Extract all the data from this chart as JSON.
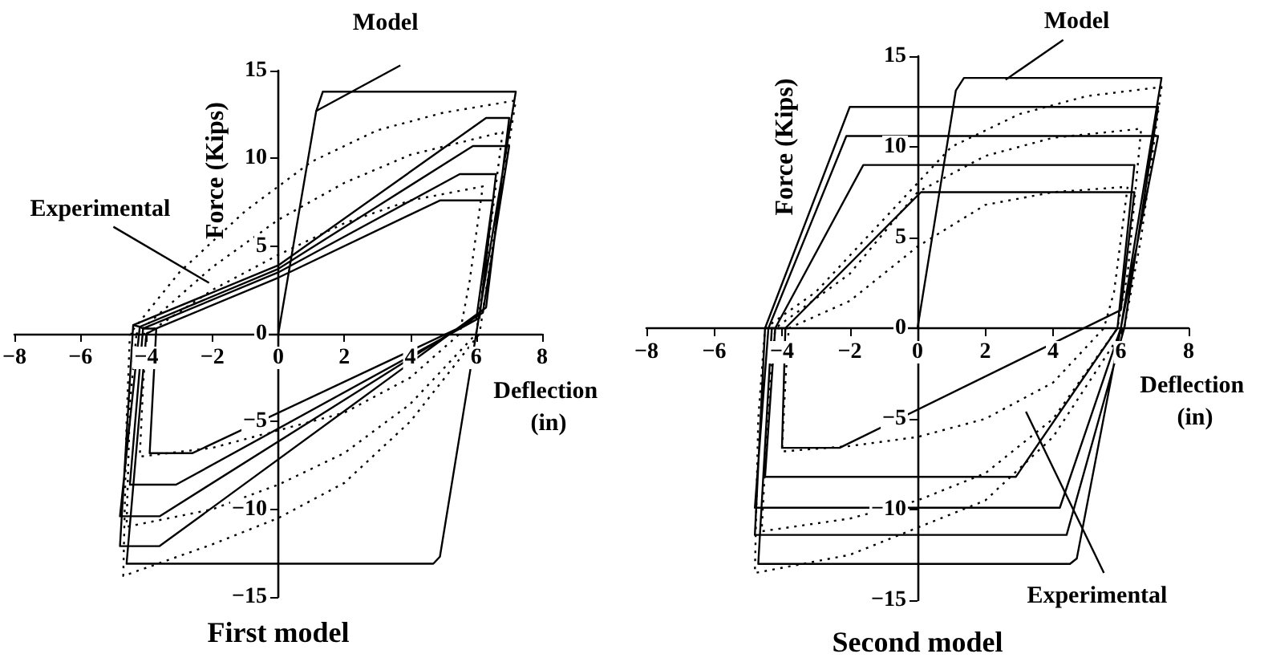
{
  "chart_data": [
    {
      "type": "line",
      "title": "First model",
      "xlabel": "Deflection (in)",
      "ylabel": "Force (Kips)",
      "xlim": [
        -8,
        8
      ],
      "xticks": [
        -8,
        -6,
        -4,
        -2,
        0,
        2,
        4,
        6,
        8
      ],
      "ylim": [
        -15,
        15
      ],
      "yticks": [
        -15,
        -10,
        -5,
        0,
        5,
        10,
        15
      ],
      "grid": false,
      "legend": false,
      "marker": "none",
      "series": [
        {
          "name": "Model",
          "color": "#000000",
          "line_style": "solid",
          "x": [
            0,
            1.15,
            1.35,
            7.2,
            6.0,
            4.9,
            4.7,
            -4.6,
            -4.0,
            -3.7,
            0,
            4.9,
            6.5,
            6.0,
            -2.6,
            -3.9,
            -3.7,
            -4.1,
            0,
            5.5,
            6.6,
            6.1,
            -3.1,
            -4.5,
            -4.1,
            -4.2,
            0,
            5.9,
            7.0,
            6.2,
            -3.6,
            -4.8,
            -4.2,
            -4.4,
            0,
            6.3,
            7.0,
            6.3,
            -3.6,
            -4.8,
            -4.4
          ],
          "values": [
            0,
            12.7,
            13.8,
            13.8,
            0,
            -12.7,
            -13.1,
            -13.1,
            0,
            0.3,
            3.2,
            7.6,
            7.6,
            0.8,
            -6.8,
            -6.8,
            0.3,
            0.3,
            3.5,
            9.1,
            9.1,
            0.9,
            -8.6,
            -8.6,
            0.3,
            0.4,
            3.7,
            10.7,
            10.7,
            1.2,
            -10.4,
            -10.4,
            0.4,
            0.5,
            3.9,
            12.3,
            12.3,
            1.5,
            -12.1,
            -12.1,
            0.5
          ]
        },
        {
          "name": "Experimental",
          "color": "#000000",
          "line_style": "dotted",
          "x": [
            -4.0,
            -2,
            0,
            2,
            4,
            6.2,
            5.8,
            5.5,
            4,
            2,
            0,
            -2,
            -4.2,
            -4.1,
            -4.0,
            -4.3,
            -2,
            0,
            2,
            4,
            6.8,
            6.3,
            6.0,
            4,
            2,
            0,
            -2,
            -4.6,
            -4.5,
            -4.3,
            -4.5,
            -3,
            -1,
            1,
            3,
            5,
            7.2,
            6.5,
            6.1,
            4,
            2,
            0,
            -2,
            -4.7,
            -4.6,
            -4.5
          ],
          "values": [
            0,
            2.5,
            4.5,
            6.3,
            7.6,
            8.4,
            3,
            0,
            -2.5,
            -4.5,
            -5.5,
            -6.5,
            -7.0,
            -3,
            0,
            0,
            3.8,
            6.5,
            8.6,
            10.2,
            11.5,
            4,
            0,
            -4,
            -6.8,
            -8.6,
            -10,
            -11,
            -4,
            0,
            0,
            3.5,
            7,
            9.8,
            11.6,
            12.6,
            13.3,
            5,
            0,
            -5,
            -8.5,
            -10.5,
            -12,
            -13.8,
            -5,
            0
          ]
        }
      ]
    },
    {
      "type": "line",
      "title": "Second model",
      "xlabel": "Deflection (in)",
      "ylabel": "Force (Kips)",
      "xlim": [
        -8,
        8
      ],
      "xticks": [
        -8,
        -6,
        -4,
        -2,
        0,
        2,
        4,
        6,
        8
      ],
      "ylim": [
        -15,
        15
      ],
      "yticks": [
        -15,
        -10,
        -5,
        0,
        5,
        10,
        15
      ],
      "grid": false,
      "legend": false,
      "marker": "none",
      "series": [
        {
          "name": "Model",
          "color": "#000000",
          "line_style": "solid",
          "x": [
            0,
            1.13,
            1.37,
            7.2,
            6.0,
            4.7,
            4.5,
            -4.7,
            -4.3,
            -3.9,
            0.1,
            6.4,
            6.0,
            -2.3,
            -4.0,
            -3.9,
            -4.2,
            -1.6,
            6.4,
            5.9,
            2.9,
            -4.5,
            -4.2,
            -4.4,
            -2.1,
            7.1,
            6.0,
            4.2,
            -4.8,
            -4.4,
            -4.5,
            -2.0,
            7.1,
            6.1,
            4.4,
            -4.8,
            -4.5
          ],
          "values": [
            0,
            13.1,
            13.8,
            13.8,
            0,
            -12.7,
            -13.0,
            -13.0,
            0,
            0,
            7.5,
            7.5,
            1.0,
            -6.6,
            -6.6,
            0,
            0,
            9.0,
            9.0,
            0,
            -8.2,
            -8.2,
            0,
            0,
            10.6,
            10.6,
            0,
            -9.9,
            -9.9,
            0,
            0,
            12.2,
            12.2,
            0,
            -11.4,
            -11.4,
            0
          ]
        },
        {
          "name": "Experimental",
          "color": "#000000",
          "line_style": "dotted",
          "x": [
            -3.8,
            -2,
            0,
            2,
            4,
            6.2,
            5.8,
            5.5,
            4,
            2,
            0,
            -2,
            -4,
            -3.9,
            -3.8,
            -4.2,
            -2,
            0,
            2,
            4,
            6.6,
            6.2,
            5.9,
            4,
            2,
            0,
            -2,
            -4.6,
            -4.4,
            -4.2,
            -4.5,
            -3,
            -1,
            1,
            3,
            5,
            7.2,
            6.6,
            6.1,
            4,
            2,
            0,
            -2,
            -4.8,
            -4.7,
            -4.5
          ],
          "values": [
            0,
            1.5,
            4.5,
            6.8,
            7.5,
            7.8,
            2,
            0,
            -3,
            -5,
            -6,
            -6.5,
            -6.8,
            -3,
            0,
            0,
            3,
            7.5,
            9.5,
            10.5,
            11,
            3,
            0,
            -5,
            -8,
            -9.5,
            -10.5,
            -11.2,
            -4,
            0,
            0,
            2,
            6,
            10,
            11.8,
            12.8,
            13.3,
            5,
            0,
            -6,
            -9.5,
            -11,
            -12.5,
            -13.5,
            -5,
            0
          ]
        }
      ]
    }
  ]
}
